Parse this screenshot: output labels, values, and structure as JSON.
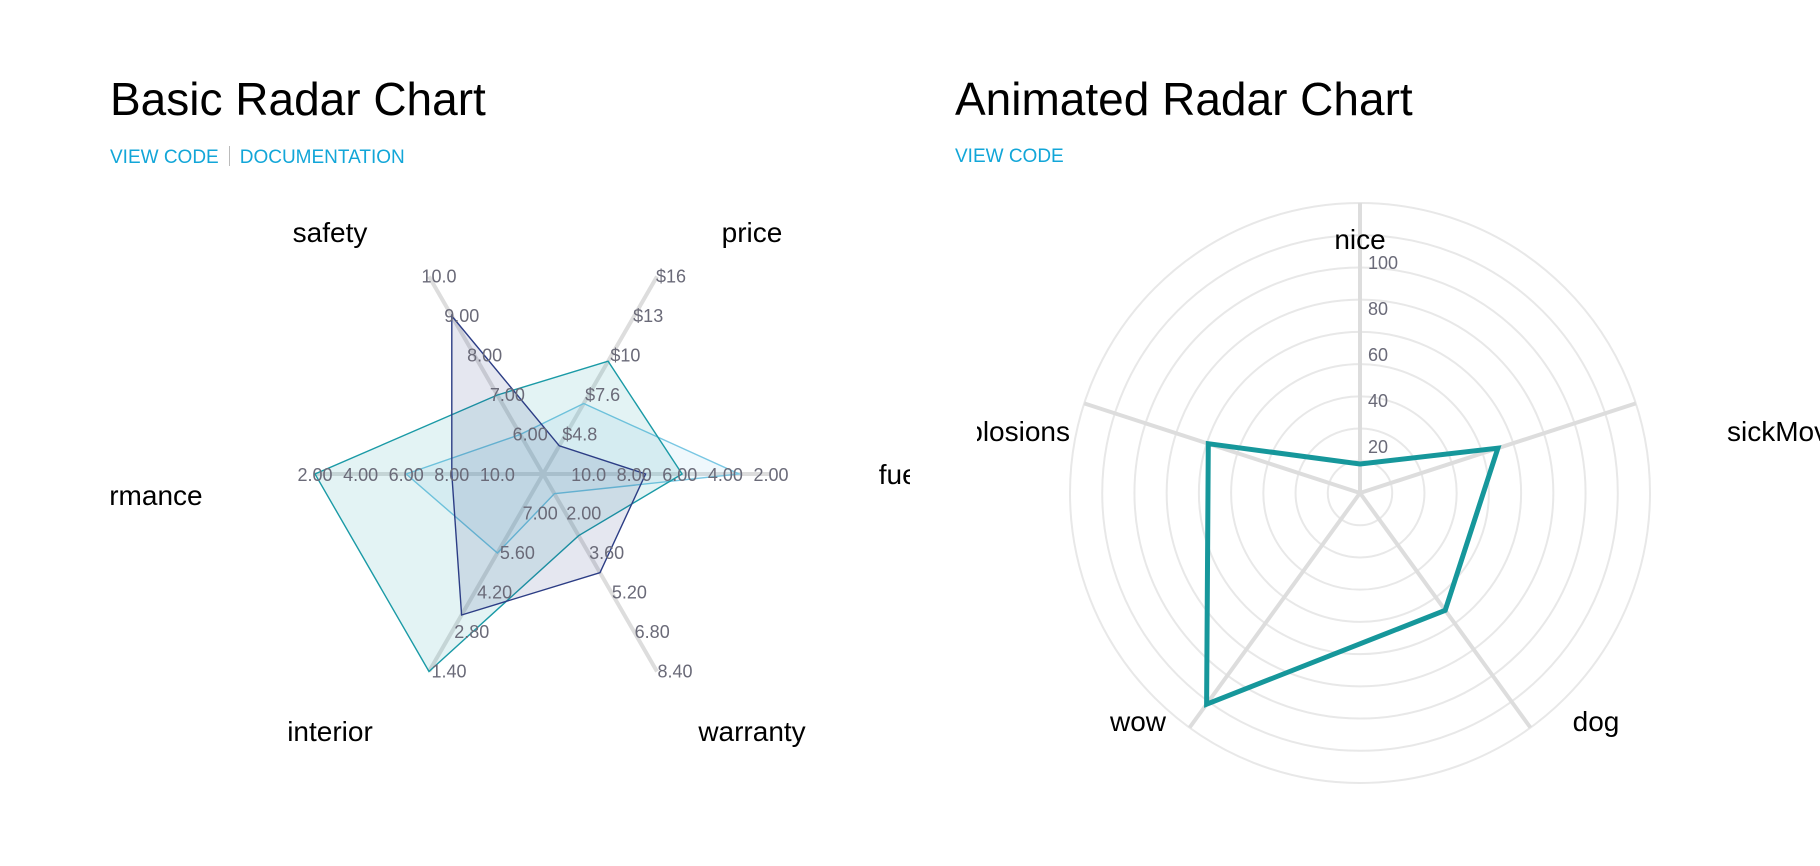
{
  "left": {
    "title": "Basic Radar Chart",
    "links": [
      "VIEW CODE",
      "DOCUMENTATION"
    ]
  },
  "right": {
    "title": "Animated Radar Chart",
    "links": [
      "VIEW CODE"
    ]
  },
  "colors": {
    "link": "#12a6d8",
    "series_light": "#79c7e3",
    "series_teal": "#1a9aa6",
    "series_navy": "#2c3d85",
    "animated_line": "#16979b",
    "axis": "#dddddd",
    "grid": "#e8e8e8"
  },
  "chart_data": [
    {
      "type": "radar",
      "title": "Basic Radar Chart",
      "axes": [
        {
          "name": "safety",
          "domain": [
            10,
            5
          ],
          "ticks": [
            "10.0",
            "9.00",
            "8.00",
            "7.00",
            "6.00"
          ]
        },
        {
          "name": "price",
          "domain": [
            2,
            16
          ],
          "ticks": [
            "$16",
            "$13",
            "$10",
            "$7.6",
            "$4.8"
          ]
        },
        {
          "name": "fuel economy",
          "domain": [
            0,
            10
          ],
          "ticks": [
            "2.00",
            "4.00",
            "6.00",
            "8.00",
            "10.0"
          ]
        },
        {
          "name": "warranty",
          "domain": [
            10,
            2
          ],
          "ticks": [
            "8.40",
            "6.80",
            "5.20",
            "3.60",
            "2.00"
          ]
        },
        {
          "name": "interior",
          "domain": [
            0,
            7
          ],
          "ticks": [
            "1.40",
            "2.80",
            "4.20",
            "5.60",
            "7.00"
          ]
        },
        {
          "name": "performance",
          "domain": [
            0,
            10
          ],
          "ticks": [
            "2.00",
            "4.00",
            "6.00",
            "8.00",
            "10.0"
          ]
        }
      ],
      "series": [
        {
          "color": "#79c7e3",
          "values": [
            9,
            7,
            8.6,
            9.2,
            2.8,
            6
          ]
        },
        {
          "color": "#1a9aa6",
          "values": [
            8,
            10,
            6.1,
            7.5,
            7,
            10
          ]
        },
        {
          "color": "#2c3d85",
          "values": [
            6,
            4,
            4.5,
            6,
            5,
            4
          ]
        }
      ]
    },
    {
      "type": "radar",
      "title": "Animated Radar Chart",
      "axes": [
        "nice",
        "sickMove",
        "dog",
        "wow",
        "explosions"
      ],
      "domain": [
        0,
        100
      ],
      "ticks": [
        "20",
        "40",
        "60",
        "80",
        "100"
      ],
      "series": [
        {
          "color": "#16979b",
          "values": [
            10,
            50,
            50,
            90,
            55
          ]
        }
      ]
    }
  ]
}
